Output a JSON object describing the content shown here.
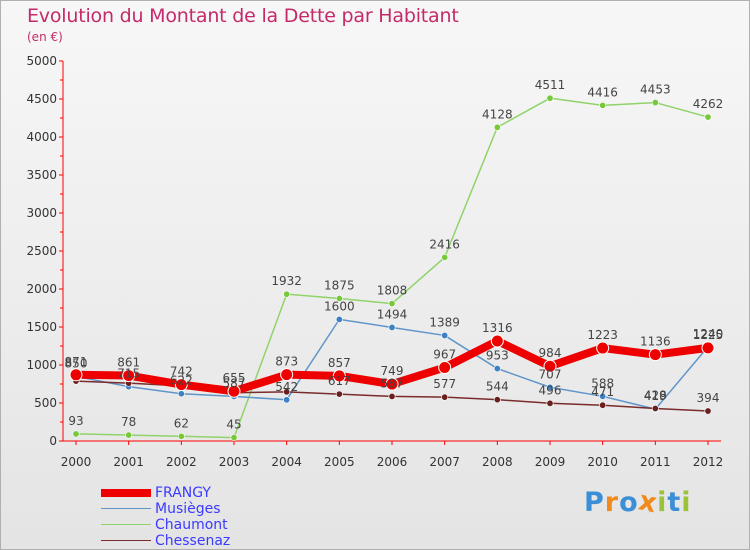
{
  "title": "Evolution du Montant de la Dette par Habitant",
  "subtitle": "(en €)",
  "logo": {
    "text": "Proxiti",
    "letters": [
      "P",
      "r",
      "o",
      "x",
      "i",
      "t",
      "i"
    ],
    "colors": [
      "#3b8fd6",
      "#f08a1c",
      "#3b8fd6",
      "#f08a1c",
      "#9bc33a",
      "#3b8fd6",
      "#9bc33a"
    ]
  },
  "legend": [
    {
      "label": "FRANGY",
      "color": "#ee0000",
      "width": 8
    },
    {
      "label": "Musièges",
      "color": "#5f96c9",
      "width": 1.5
    },
    {
      "label": "Chaumont",
      "color": "#8fd36a",
      "width": 1.5
    },
    {
      "label": "Chessenaz",
      "color": "#7a2b2b",
      "width": 1.5
    }
  ],
  "chart_data": {
    "type": "line",
    "title": "Evolution du Montant de la Dette par Habitant",
    "ylabel": "(en €)",
    "x": [
      "2000",
      "2001",
      "2002",
      "2003",
      "2004",
      "2005",
      "2006",
      "2007",
      "2008",
      "2009",
      "2010",
      "2011",
      "2012"
    ],
    "ylim": [
      0,
      5000
    ],
    "yticks": [
      0,
      500,
      1000,
      1500,
      2000,
      2500,
      3000,
      3500,
      4000,
      4500,
      5000
    ],
    "grid": false,
    "legend_position": "bottom-left",
    "series": [
      {
        "name": "Chaumont",
        "color": "#8fd36a",
        "marker": "#78c93a",
        "values": [
          93,
          78,
          62,
          45,
          1932,
          1875,
          1808,
          2416,
          4128,
          4511,
          4416,
          4453,
          4262
        ],
        "labels": [
          "93",
          "78",
          "62",
          "45",
          "1932",
          "1875",
          "1808",
          "2416",
          "4128",
          "4511",
          "4416",
          "4453",
          "4262"
        ]
      },
      {
        "name": "Musièges",
        "color": "#5f96c9",
        "marker": "#3d80c4",
        "values": [
          850,
          715,
          622,
          587,
          542,
          1600,
          1494,
          1389,
          953,
          707,
          588,
          419,
          1240
        ],
        "labels": [
          "850",
          "715",
          "622",
          "587",
          "542",
          "1600",
          "1494",
          "1389",
          "953",
          "707",
          "588",
          "419",
          "1240"
        ]
      },
      {
        "name": "Chessenaz",
        "color": "#7a2b2b",
        "marker": "#6a1f1f",
        "values": [
          788,
          761,
          725,
          635,
          647,
          617,
          587,
          577,
          544,
          496,
          471,
          428,
          394
        ],
        "labels": [
          "",
          "",
          "",
          "",
          "",
          "617",
          "587",
          "577",
          "544",
          "496",
          "471",
          "428",
          "394"
        ]
      },
      {
        "name": "FRANGY",
        "color": "#ee0000",
        "marker": "#ee0000",
        "values": [
          871,
          861,
          742,
          655,
          873,
          857,
          749,
          967,
          1316,
          984,
          1223,
          1136,
          1225
        ],
        "labels": [
          "871",
          "861",
          "742",
          "655",
          "873",
          "857",
          "749",
          "967",
          "1316",
          "984",
          "1223",
          "1136",
          "1225"
        ]
      }
    ]
  }
}
